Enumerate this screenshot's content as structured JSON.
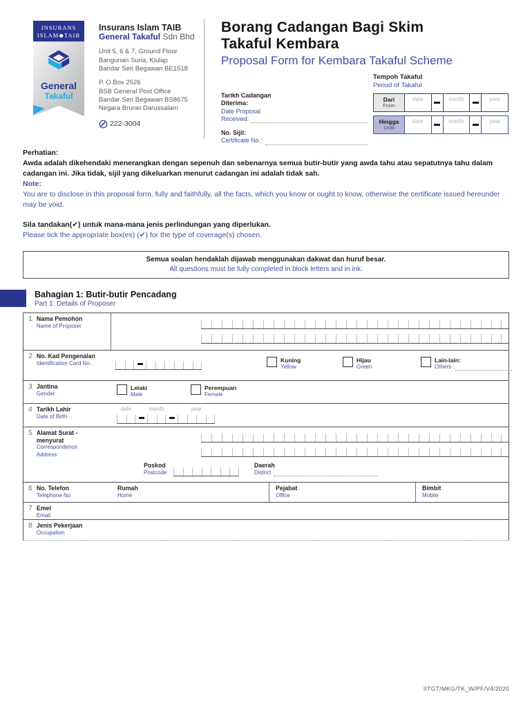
{
  "colors": {
    "navy": "#2b3590",
    "cyan": "#29abe2",
    "blue_text": "#3e4fa3"
  },
  "logo": {
    "banner_line1": "INSURANS",
    "banner_line2": "ISLAM◆TAIB",
    "general": "General",
    "takaful": "Takaful"
  },
  "company": {
    "name": "Insurans Islam TAIB",
    "brand": "General Takaful",
    "brand_suffix": " Sdn Bhd",
    "addr1_l1": "Unit 5, 6 & 7, Ground Floor",
    "addr1_l2": "Bangunan Suria, Kiulap",
    "addr1_l3": "Bandar Seri Begawan BE1518",
    "addr2_l1": "P. O.Box 2526",
    "addr2_l2": "BSB General Post Office",
    "addr2_l3": "Bandar Seri Begawan BS8675",
    "addr2_l4": "Negara Brunei Darussalam",
    "phone": "222-3004"
  },
  "title": {
    "ms1": "Borang Cadangan Bagi Skim",
    "ms2": "Takaful Kembara",
    "en": "Proposal Form for Kembara Takaful Scheme"
  },
  "received": {
    "ms1": "Tarikh Cadangan",
    "ms2": "Diterima:",
    "en1": "Date Proposal",
    "en2": "Received:"
  },
  "certificate": {
    "ms": "No. Sijil:",
    "en": "Certificate No.:"
  },
  "period": {
    "title_ms": "Tempoh Takaful",
    "title_en": "Period of Takaful",
    "from_ms": "Dari",
    "from_en": "From",
    "until_ms": "Hingga",
    "until_en": "Until"
  },
  "labels": {
    "date": "date",
    "month": "month",
    "year": "year"
  },
  "notice": {
    "heading_ms": "Perhatian:",
    "body_ms": "Awda adalah dikehendaki menerangkan dengan sepenuh dan sebenarnya semua butir-butir yang awda tahu atau sepatutnya tahu dalam cadangan ini. Jika tidak, sijil yang dikeluarkan menurut cadangan ini adalah tidak sah.",
    "heading_en": "Note:",
    "body_en": "You are to disclose in this proposal form, fully and faithfully, all the facts, which you know or ought to know, otherwise the certificate issued hereunder may be void.",
    "tick_ms": "Sila tandakan(✔) untuk mana-mana jenis perlindungan yang diperlukan.",
    "tick_en": "Please tick the appropriate box(es) (✔) for the type of coverage(s) chosen."
  },
  "block_box": {
    "ms": "Semua soalan hendaklah dijawab menggunakan dakwat dan huruf besar.",
    "en": "All questions must be fully completed in block letters and in ink."
  },
  "section1": {
    "title_ms": "Bahagian 1: Butir-butir Pencadang",
    "title_en": "Part 1: Details of Proposer"
  },
  "form": {
    "rows": [
      {
        "no": "1",
        "ms": "Nama Pemohon",
        "en": "Name of Proposer"
      },
      {
        "no": "2",
        "ms": "No. Kad Pengenalan",
        "en": "Identification Card No.",
        "opt1_ms": "Kuning",
        "opt1_en": "Yellow",
        "opt2_ms": "Hijau",
        "opt2_en": "Green",
        "opt3_ms": "Lain-lain:",
        "opt3_en": "Others :"
      },
      {
        "no": "3",
        "ms": "Jantina",
        "en": "Gender",
        "opt1_ms": "Lelaki",
        "opt1_en": "Male",
        "opt2_ms": "Perempuan",
        "opt2_en": "Female"
      },
      {
        "no": "4",
        "ms": "Tarikh Lahir",
        "en": "Date of Birth"
      },
      {
        "no": "5",
        "ms": "Alamat Surat - menyurat",
        "en": "Correspondence Address",
        "postcode_ms": "Poskod",
        "postcode_en": "Postcode",
        "district_ms": "Daerah",
        "district_en": "District"
      },
      {
        "no": "6",
        "ms": "No. Telefon",
        "en": "Telephone No",
        "col1_ms": "Rumah",
        "col1_en": "Home",
        "col2_ms": "Pejabat",
        "col2_en": "Office",
        "col3_ms": "Bimbit",
        "col3_en": "Mobile"
      },
      {
        "no": "7",
        "ms": "Emel",
        "en": "Email"
      },
      {
        "no": "8",
        "ms": "Jenis Pekerjaan",
        "en": "Occupation"
      }
    ]
  },
  "footer": {
    "code": "IITGT/MKG/TK_W/PF/V4/2020"
  }
}
